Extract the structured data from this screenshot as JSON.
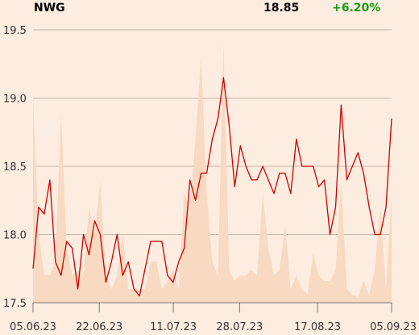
{
  "header": {
    "ticker": "NWG",
    "price": "18.85",
    "change": "+6.20%"
  },
  "colors": {
    "price_line": "#cc0000",
    "volume_area": "#f8d9c2",
    "change_positive": "#12a012",
    "grid": "#c8b8ab",
    "background": "#fcede0"
  },
  "chart_data": {
    "type": "line",
    "title": "",
    "xlabel": "",
    "ylabel": "",
    "ylim": [
      17.5,
      19.5
    ],
    "yticks": [
      17.5,
      18.0,
      18.5,
      19.0,
      19.5
    ],
    "ytick_labels": [
      "17.5",
      "18.0",
      "18.5",
      "19.0",
      "19.5"
    ],
    "xticks": [
      "2023-06-05",
      "2023-06-22",
      "2023-07-11",
      "2023-07-28",
      "2023-08-17",
      "2023-09-05"
    ],
    "xtick_labels": [
      "05.06.23",
      "22.06.23",
      "11.07.23",
      "28.07.23",
      "17.08.23",
      "05.09.23"
    ],
    "grid": true,
    "series": [
      {
        "kind": "price",
        "values": [
          17.75,
          18.2,
          18.15,
          18.4,
          17.8,
          17.7,
          17.95,
          17.9,
          17.6,
          18.0,
          17.85,
          18.1,
          18.0,
          17.65,
          17.8,
          18.0,
          17.7,
          17.8,
          17.6,
          17.55,
          17.75,
          17.95,
          17.95,
          17.95,
          17.7,
          17.65,
          17.8,
          17.9,
          18.4,
          18.25,
          18.45,
          18.45,
          18.7,
          18.85,
          19.15,
          18.8,
          18.35,
          18.65,
          18.5,
          18.4,
          18.4,
          18.5,
          18.4,
          18.3,
          18.45,
          18.45,
          18.3,
          18.7,
          18.5,
          18.5,
          18.5,
          18.35,
          18.4,
          18.0,
          18.2,
          18.95,
          18.4,
          18.5,
          18.6,
          18.45,
          18.2,
          18.0,
          18.0,
          18.2,
          18.85
        ]
      },
      {
        "kind": "volume",
        "values": [
          0.75,
          0.25,
          0.1,
          0.1,
          0.15,
          0.7,
          0.2,
          0.1,
          0.12,
          0.1,
          0.35,
          0.25,
          0.45,
          0.1,
          0.05,
          0.1,
          0.25,
          0.05,
          0.05,
          0.05,
          0.05,
          0.15,
          0.15,
          0.05,
          0.08,
          0.12,
          0.05,
          0.4,
          0.35,
          0.6,
          0.9,
          0.4,
          0.15,
          0.1,
          0.95,
          0.12,
          0.08,
          0.1,
          0.1,
          0.12,
          0.1,
          0.4,
          0.2,
          0.1,
          0.12,
          0.28,
          0.05,
          0.1,
          0.05,
          0.03,
          0.18,
          0.1,
          0.08,
          0.08,
          0.12,
          0.45,
          0.05,
          0.03,
          0.02,
          0.08,
          0.03,
          0.12,
          0.35,
          0.05,
          0.4
        ]
      }
    ]
  }
}
